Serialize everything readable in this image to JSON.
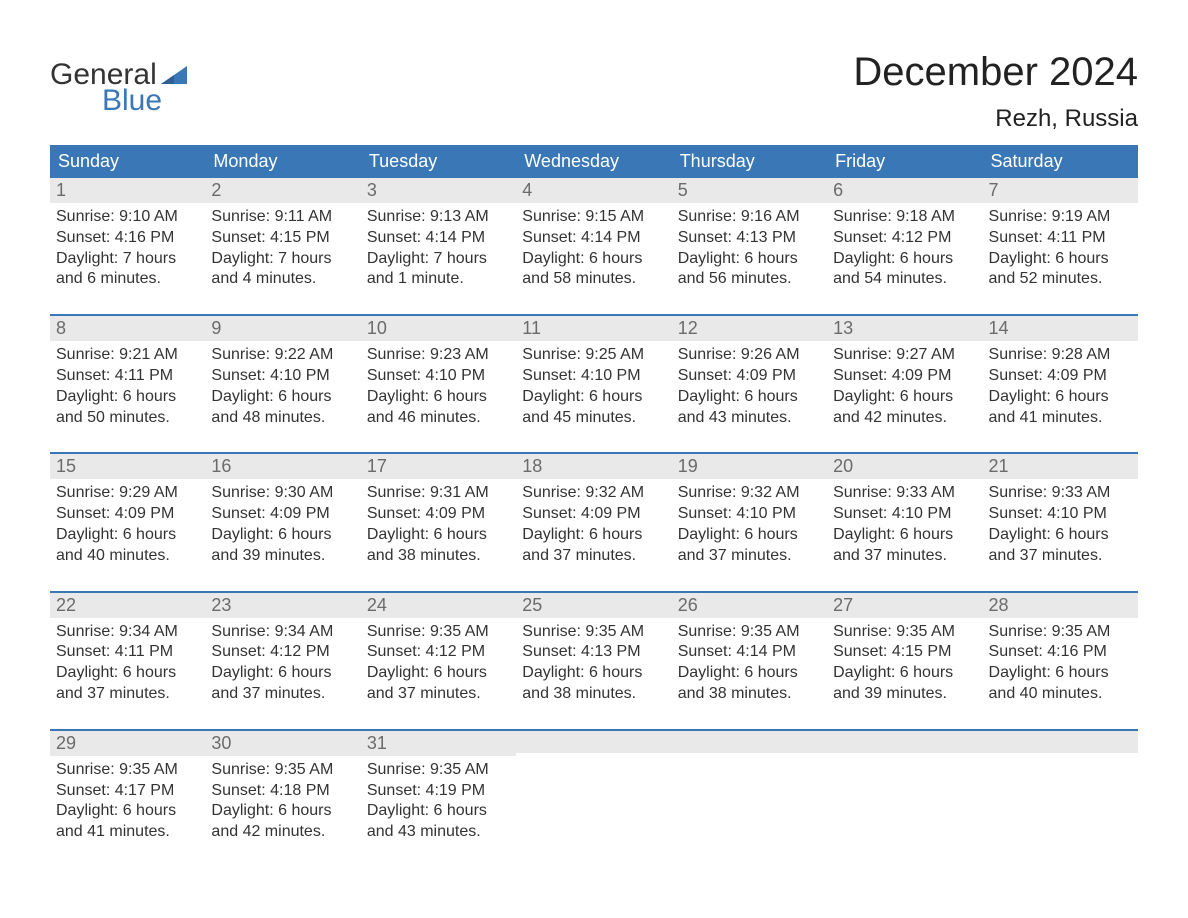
{
  "brand": {
    "word1": "General",
    "word2": "Blue",
    "text_color": "#333333",
    "accent_color": "#3a77b7"
  },
  "title": "December 2024",
  "location": "Rezh, Russia",
  "colors": {
    "header_bg": "#3a77b7",
    "header_text": "#ffffff",
    "daynum_bg": "#e9e9e9",
    "daynum_text": "#6b6b6b",
    "body_text": "#333333",
    "week_divider": "#3a77b7",
    "page_bg": "#ffffff"
  },
  "typography": {
    "title_fontsize": 40,
    "location_fontsize": 24,
    "weekday_fontsize": 18,
    "daynum_fontsize": 18,
    "body_fontsize": 16,
    "logo_fontsize": 30
  },
  "weekdays": [
    "Sunday",
    "Monday",
    "Tuesday",
    "Wednesday",
    "Thursday",
    "Friday",
    "Saturday"
  ],
  "weeks": [
    [
      {
        "n": "1",
        "sunrise": "9:10 AM",
        "sunset": "4:16 PM",
        "daylight": "7 hours and 6 minutes."
      },
      {
        "n": "2",
        "sunrise": "9:11 AM",
        "sunset": "4:15 PM",
        "daylight": "7 hours and 4 minutes."
      },
      {
        "n": "3",
        "sunrise": "9:13 AM",
        "sunset": "4:14 PM",
        "daylight": "7 hours and 1 minute."
      },
      {
        "n": "4",
        "sunrise": "9:15 AM",
        "sunset": "4:14 PM",
        "daylight": "6 hours and 58 minutes."
      },
      {
        "n": "5",
        "sunrise": "9:16 AM",
        "sunset": "4:13 PM",
        "daylight": "6 hours and 56 minutes."
      },
      {
        "n": "6",
        "sunrise": "9:18 AM",
        "sunset": "4:12 PM",
        "daylight": "6 hours and 54 minutes."
      },
      {
        "n": "7",
        "sunrise": "9:19 AM",
        "sunset": "4:11 PM",
        "daylight": "6 hours and 52 minutes."
      }
    ],
    [
      {
        "n": "8",
        "sunrise": "9:21 AM",
        "sunset": "4:11 PM",
        "daylight": "6 hours and 50 minutes."
      },
      {
        "n": "9",
        "sunrise": "9:22 AM",
        "sunset": "4:10 PM",
        "daylight": "6 hours and 48 minutes."
      },
      {
        "n": "10",
        "sunrise": "9:23 AM",
        "sunset": "4:10 PM",
        "daylight": "6 hours and 46 minutes."
      },
      {
        "n": "11",
        "sunrise": "9:25 AM",
        "sunset": "4:10 PM",
        "daylight": "6 hours and 45 minutes."
      },
      {
        "n": "12",
        "sunrise": "9:26 AM",
        "sunset": "4:09 PM",
        "daylight": "6 hours and 43 minutes."
      },
      {
        "n": "13",
        "sunrise": "9:27 AM",
        "sunset": "4:09 PM",
        "daylight": "6 hours and 42 minutes."
      },
      {
        "n": "14",
        "sunrise": "9:28 AM",
        "sunset": "4:09 PM",
        "daylight": "6 hours and 41 minutes."
      }
    ],
    [
      {
        "n": "15",
        "sunrise": "9:29 AM",
        "sunset": "4:09 PM",
        "daylight": "6 hours and 40 minutes."
      },
      {
        "n": "16",
        "sunrise": "9:30 AM",
        "sunset": "4:09 PM",
        "daylight": "6 hours and 39 minutes."
      },
      {
        "n": "17",
        "sunrise": "9:31 AM",
        "sunset": "4:09 PM",
        "daylight": "6 hours and 38 minutes."
      },
      {
        "n": "18",
        "sunrise": "9:32 AM",
        "sunset": "4:09 PM",
        "daylight": "6 hours and 37 minutes."
      },
      {
        "n": "19",
        "sunrise": "9:32 AM",
        "sunset": "4:10 PM",
        "daylight": "6 hours and 37 minutes."
      },
      {
        "n": "20",
        "sunrise": "9:33 AM",
        "sunset": "4:10 PM",
        "daylight": "6 hours and 37 minutes."
      },
      {
        "n": "21",
        "sunrise": "9:33 AM",
        "sunset": "4:10 PM",
        "daylight": "6 hours and 37 minutes."
      }
    ],
    [
      {
        "n": "22",
        "sunrise": "9:34 AM",
        "sunset": "4:11 PM",
        "daylight": "6 hours and 37 minutes."
      },
      {
        "n": "23",
        "sunrise": "9:34 AM",
        "sunset": "4:12 PM",
        "daylight": "6 hours and 37 minutes."
      },
      {
        "n": "24",
        "sunrise": "9:35 AM",
        "sunset": "4:12 PM",
        "daylight": "6 hours and 37 minutes."
      },
      {
        "n": "25",
        "sunrise": "9:35 AM",
        "sunset": "4:13 PM",
        "daylight": "6 hours and 38 minutes."
      },
      {
        "n": "26",
        "sunrise": "9:35 AM",
        "sunset": "4:14 PM",
        "daylight": "6 hours and 38 minutes."
      },
      {
        "n": "27",
        "sunrise": "9:35 AM",
        "sunset": "4:15 PM",
        "daylight": "6 hours and 39 minutes."
      },
      {
        "n": "28",
        "sunrise": "9:35 AM",
        "sunset": "4:16 PM",
        "daylight": "6 hours and 40 minutes."
      }
    ],
    [
      {
        "n": "29",
        "sunrise": "9:35 AM",
        "sunset": "4:17 PM",
        "daylight": "6 hours and 41 minutes."
      },
      {
        "n": "30",
        "sunrise": "9:35 AM",
        "sunset": "4:18 PM",
        "daylight": "6 hours and 42 minutes."
      },
      {
        "n": "31",
        "sunrise": "9:35 AM",
        "sunset": "4:19 PM",
        "daylight": "6 hours and 43 minutes."
      },
      null,
      null,
      null,
      null
    ]
  ],
  "labels": {
    "sunrise": "Sunrise:",
    "sunset": "Sunset:",
    "daylight": "Daylight:"
  }
}
